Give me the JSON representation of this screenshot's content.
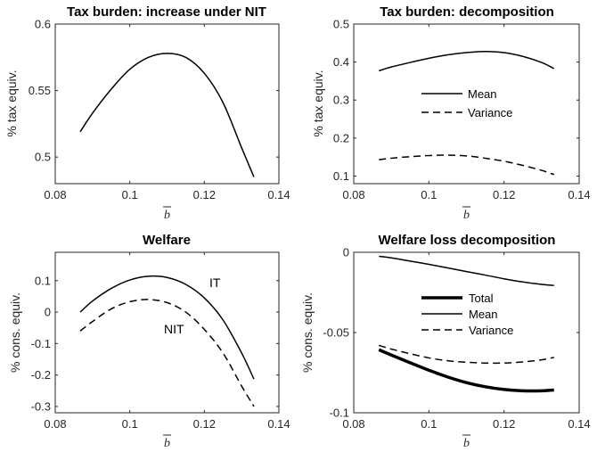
{
  "chart_data": [
    {
      "type": "line",
      "title": "Tax burden: increase under NIT",
      "xlabel": "b",
      "ylabel": "% tax equiv.",
      "xlim": [
        0.08,
        0.14
      ],
      "ylim": [
        0.48,
        0.6
      ],
      "xticks": [
        "0.08",
        "0.1",
        "0.12",
        "0.14"
      ],
      "yticks": [
        "0.5",
        "0.55",
        "0.6"
      ],
      "grid": false,
      "legend": "none",
      "series": [
        {
          "style": "solid",
          "x": [
            0.0867,
            0.09,
            0.095,
            0.1,
            0.105,
            0.11,
            0.115,
            0.12,
            0.125,
            0.13,
            0.1333
          ],
          "y": [
            0.519,
            0.533,
            0.551,
            0.566,
            0.575,
            0.578,
            0.575,
            0.563,
            0.541,
            0.507,
            0.485
          ]
        }
      ]
    },
    {
      "type": "line",
      "title": "Tax burden: decomposition",
      "xlabel": "b",
      "ylabel": "% tax equiv.",
      "xlim": [
        0.08,
        0.14
      ],
      "ylim": [
        0.08,
        0.5
      ],
      "xticks": [
        "0.08",
        "0.1",
        "0.12",
        "0.14"
      ],
      "yticks": [
        "0.1",
        "0.2",
        "0.3",
        "0.4",
        "0.5"
      ],
      "grid": false,
      "legend": "center",
      "series": [
        {
          "name": "Mean",
          "style": "solid",
          "x": [
            0.0867,
            0.09,
            0.095,
            0.1,
            0.105,
            0.11,
            0.115,
            0.12,
            0.125,
            0.13,
            0.1333
          ],
          "y": [
            0.377,
            0.387,
            0.399,
            0.41,
            0.419,
            0.425,
            0.428,
            0.425,
            0.415,
            0.399,
            0.383
          ]
        },
        {
          "name": "Variance",
          "style": "dashed",
          "x": [
            0.0867,
            0.09,
            0.095,
            0.1,
            0.105,
            0.11,
            0.115,
            0.12,
            0.125,
            0.13,
            0.1333
          ],
          "y": [
            0.143,
            0.147,
            0.151,
            0.154,
            0.155,
            0.153,
            0.147,
            0.139,
            0.128,
            0.115,
            0.104
          ]
        }
      ]
    },
    {
      "type": "line",
      "title": "Welfare",
      "xlabel": "b",
      "ylabel": "% cons. equiv.",
      "xlim": [
        0.08,
        0.14
      ],
      "ylim": [
        -0.32,
        0.19
      ],
      "xticks": [
        "0.08",
        "0.1",
        "0.12",
        "0.14"
      ],
      "yticks": [
        "-0.3",
        "-0.2",
        "-0.1",
        "0",
        "0.1"
      ],
      "grid": false,
      "legend": "none",
      "annotations": [
        "IT",
        "NIT"
      ],
      "series": [
        {
          "name": "IT",
          "style": "solid",
          "x": [
            0.0867,
            0.09,
            0.095,
            0.1,
            0.105,
            0.11,
            0.115,
            0.12,
            0.125,
            0.13,
            0.1333
          ],
          "y": [
            0.0,
            0.035,
            0.075,
            0.102,
            0.114,
            0.11,
            0.088,
            0.045,
            -0.025,
            -0.13,
            -0.213
          ]
        },
        {
          "name": "NIT",
          "style": "dashed",
          "x": [
            0.0867,
            0.09,
            0.095,
            0.1,
            0.105,
            0.11,
            0.115,
            0.12,
            0.125,
            0.13,
            0.1333
          ],
          "y": [
            -0.06,
            -0.03,
            0.01,
            0.033,
            0.04,
            0.03,
            0.0,
            -0.055,
            -0.13,
            -0.235,
            -0.3
          ]
        }
      ]
    },
    {
      "type": "line",
      "title": "Welfare loss decomposition",
      "xlabel": "b",
      "ylabel": "% cons. equiv.",
      "xlim": [
        0.08,
        0.14
      ],
      "ylim": [
        -0.1,
        0.0
      ],
      "xticks": [
        "0.08",
        "0.1",
        "0.12",
        "0.14"
      ],
      "yticks": [
        "-0.1",
        "-0.05",
        "0"
      ],
      "grid": false,
      "legend": "center",
      "series": [
        {
          "name": "Total",
          "style": "thick",
          "x": [
            0.0867,
            0.09,
            0.095,
            0.1,
            0.105,
            0.11,
            0.115,
            0.12,
            0.125,
            0.13,
            0.1333
          ],
          "y": [
            -0.0607,
            -0.064,
            -0.0688,
            -0.0735,
            -0.0777,
            -0.0812,
            -0.0838,
            -0.0855,
            -0.0863,
            -0.0863,
            -0.0858
          ]
        },
        {
          "name": "Mean",
          "style": "solid",
          "x": [
            0.0867,
            0.09,
            0.095,
            0.1,
            0.105,
            0.11,
            0.115,
            0.12,
            0.125,
            0.13,
            0.1333
          ],
          "y": [
            -0.0025,
            -0.0035,
            -0.0055,
            -0.0075,
            -0.0097,
            -0.012,
            -0.0142,
            -0.0165,
            -0.0185,
            -0.02,
            -0.0207
          ]
        },
        {
          "name": "Variance",
          "style": "dashed",
          "x": [
            0.0867,
            0.09,
            0.095,
            0.1,
            0.105,
            0.11,
            0.115,
            0.12,
            0.125,
            0.13,
            0.1333
          ],
          "y": [
            -0.058,
            -0.0603,
            -0.0632,
            -0.0658,
            -0.0676,
            -0.0685,
            -0.069,
            -0.069,
            -0.0683,
            -0.067,
            -0.0655
          ]
        }
      ]
    }
  ]
}
